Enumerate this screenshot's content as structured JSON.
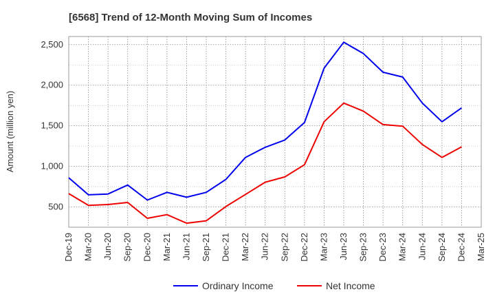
{
  "chart_data": {
    "type": "line",
    "title": "[6568]  Trend of 12-Month Moving Sum of Incomes",
    "xlabel": "",
    "ylabel": "Amount (million yen)",
    "ylim": [
      250,
      2600
    ],
    "yticks": [
      500,
      1000,
      1500,
      2000,
      2500
    ],
    "ytick_labels": [
      "500",
      "1,000",
      "1,500",
      "2,000",
      "2,500"
    ],
    "x": [
      "Dec-19",
      "Mar-20",
      "Jun-20",
      "Sep-20",
      "Dec-20",
      "Mar-21",
      "Jun-21",
      "Sep-21",
      "Dec-21",
      "Mar-22",
      "Jun-22",
      "Sep-22",
      "Dec-22",
      "Mar-23",
      "Jun-23",
      "Sep-23",
      "Dec-23",
      "Mar-24",
      "Jun-24",
      "Sep-24",
      "Dec-24",
      "Mar-25"
    ],
    "grid": true,
    "legend_position": "bottom",
    "series": [
      {
        "name": "Ordinary Income",
        "color": "#0000ee",
        "values": [
          860,
          650,
          660,
          770,
          585,
          680,
          620,
          680,
          840,
          1110,
          1235,
          1325,
          1540,
          2210,
          2530,
          2390,
          2160,
          2100,
          1780,
          1550,
          1720,
          null
        ]
      },
      {
        "name": "Net Income",
        "color": "#ee0000",
        "values": [
          665,
          520,
          530,
          555,
          360,
          405,
          300,
          330,
          505,
          655,
          805,
          870,
          1020,
          1550,
          1780,
          1680,
          1515,
          1495,
          1270,
          1110,
          1240,
          null
        ]
      }
    ]
  }
}
